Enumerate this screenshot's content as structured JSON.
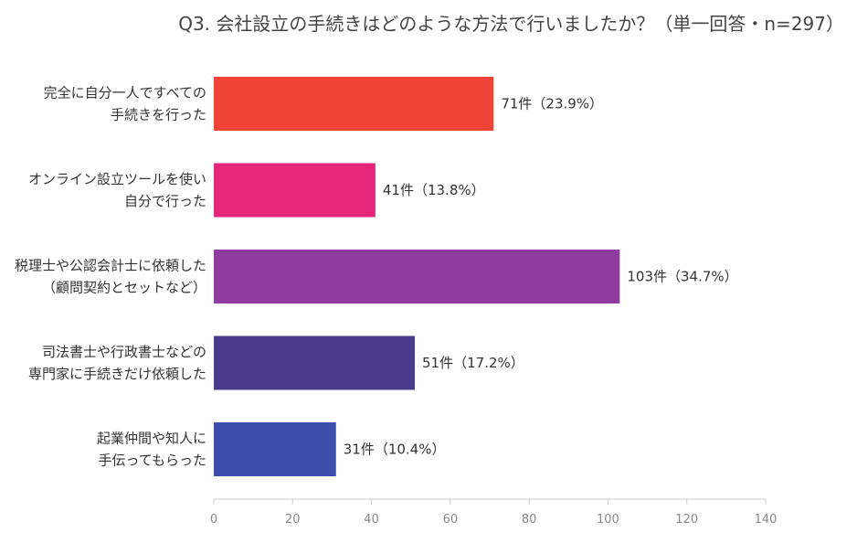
{
  "chart_data": {
    "type": "bar",
    "orientation": "horizontal",
    "title": "Q3. 会社設立の手続きはどのような方法で行いましたか？（単一回答・n=297）",
    "categories": [
      [
        "完全に自分一人ですべての",
        "手続きを行った"
      ],
      [
        "オンライン設立ツールを使い",
        "自分で行った"
      ],
      [
        "税理士や公認会計士に依頼した",
        "（顧問契約とセットなど）"
      ],
      [
        "司法書士や行政書士などの",
        "専門家に手続きだけ依頼した"
      ],
      [
        "起業仲間や知人に",
        "手伝ってもらった"
      ]
    ],
    "values": [
      71,
      41,
      103,
      51,
      31
    ],
    "data_labels": [
      "71件（23.9%）",
      "41件（13.8%）",
      "103件（34.7%）",
      "51件（17.2%）",
      "31件（10.4%）"
    ],
    "colors": [
      "#f04438",
      "#e5267a",
      "#8e3c9f",
      "#4a3b8f",
      "#3b4eab"
    ],
    "xlim": [
      0,
      140
    ],
    "xticks": [
      0,
      20,
      40,
      60,
      80,
      100,
      120,
      140
    ],
    "grid": false,
    "legend": "none"
  }
}
